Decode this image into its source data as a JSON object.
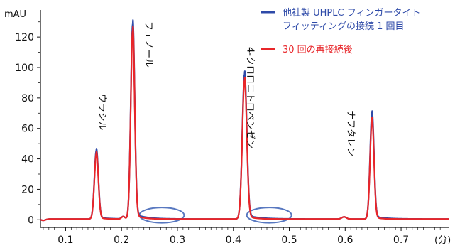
{
  "chart_data": {
    "type": "line",
    "ylabel": "mAU",
    "xunit": "(分)",
    "xlim": [
      0.055,
      0.785
    ],
    "ylim": [
      -5,
      135
    ],
    "xticks": [
      0.1,
      0.2,
      0.3,
      0.4,
      0.5,
      0.6,
      0.7
    ],
    "xtick_labels": [
      "0.1",
      "0.2",
      "0.3",
      "0.4",
      "0.5",
      "0.6",
      "0.7"
    ],
    "yticks": [
      0,
      20,
      40,
      60,
      80,
      100,
      120
    ],
    "ytick_labels": [
      "0",
      "20",
      "40",
      "60",
      "80",
      "100",
      "120"
    ],
    "grid": false,
    "legend_position": "top-right",
    "series": [
      {
        "name": "他社製 UHPLC フィンガータイトフィッティングの接続 1 回目",
        "color": "#2e4aa8",
        "peaks": [
          {
            "x": 0.155,
            "height": 45,
            "width": 0.0035,
            "tail": 0.007
          },
          {
            "x": 0.22,
            "height": 128,
            "width": 0.0035,
            "tail": 0.008
          },
          {
            "x": 0.42,
            "height": 95,
            "width": 0.004,
            "tail": 0.009
          },
          {
            "x": 0.648,
            "height": 69,
            "width": 0.0035,
            "tail": 0.008
          }
        ],
        "baseline": 0.5
      },
      {
        "name": "30 回の再接続後",
        "color": "#e8262a",
        "peaks": [
          {
            "x": 0.155,
            "height": 43,
            "width": 0.0035,
            "tail": 0.004
          },
          {
            "x": 0.22,
            "height": 124,
            "width": 0.0035,
            "tail": 0.005
          },
          {
            "x": 0.42,
            "height": 91,
            "width": 0.004,
            "tail": 0.005
          },
          {
            "x": 0.648,
            "height": 65,
            "width": 0.0035,
            "tail": 0.004
          }
        ],
        "baseline": 0.5
      }
    ],
    "annotations": [
      {
        "label": "ウラシル",
        "x": 0.155
      },
      {
        "label": "フェノール",
        "x": 0.22
      },
      {
        "label": "4-クロロニトロベンゼン",
        "x": 0.42
      },
      {
        "label": "ナフタレン",
        "x": 0.648
      }
    ],
    "highlight_ellipses": [
      {
        "cx": 0.272,
        "cy": 3,
        "rx": 0.04,
        "ry": 5
      },
      {
        "cx": 0.464,
        "cy": 3,
        "rx": 0.04,
        "ry": 5
      }
    ],
    "highlight_color": "#5878c0"
  }
}
